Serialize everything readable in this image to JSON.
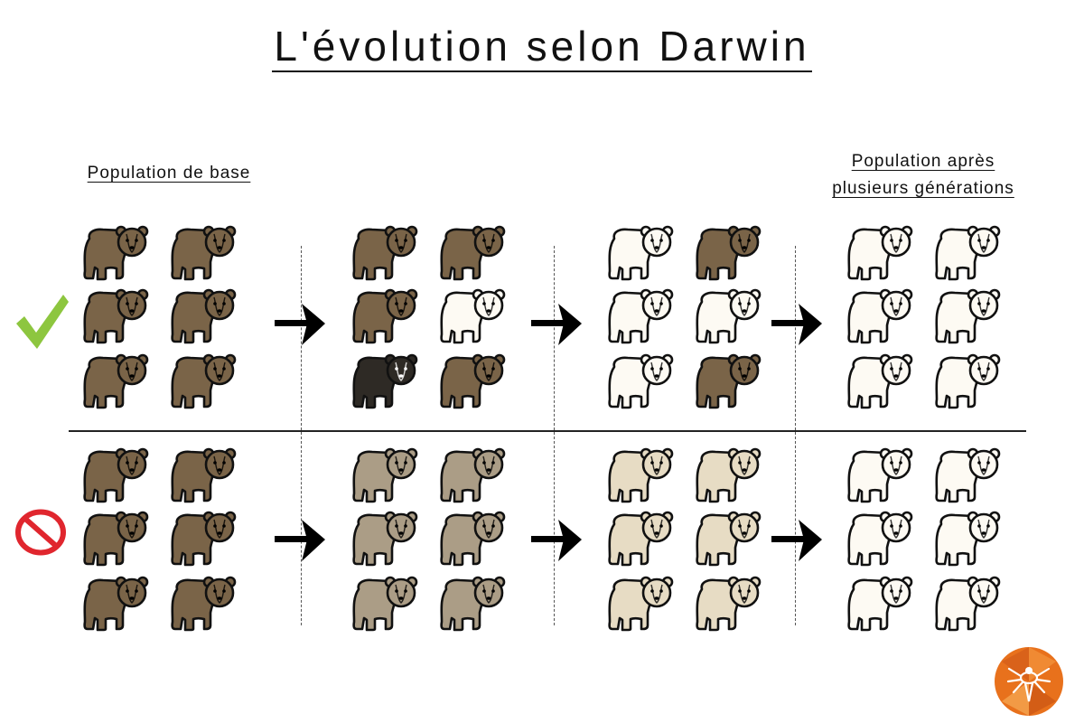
{
  "title": "L'évolution selon Darwin",
  "labels": {
    "base": "Population de base",
    "after_line1": "Population après",
    "after_line2": "plusieurs générations"
  },
  "colors": {
    "brown": "#7a6448",
    "dark": "#2e2a25",
    "white": "#fdfaf3",
    "gray_brown": "#ab9d86",
    "beige": "#e7dcc4",
    "check_green": "#8dc63f",
    "stop_red": "#e0262e",
    "logo_orange": "#e8711c"
  },
  "rows": [
    {
      "name": "selection-row",
      "marker": "check-icon",
      "generations": [
        [
          "brown",
          "brown",
          "brown",
          "brown",
          "brown",
          "brown"
        ],
        [
          "brown",
          "brown",
          "brown",
          "white",
          "dark",
          "brown"
        ],
        [
          "white",
          "brown",
          "white",
          "white",
          "white",
          "brown"
        ],
        [
          "white",
          "white",
          "white",
          "white",
          "white",
          "white"
        ]
      ]
    },
    {
      "name": "no-selection-row",
      "marker": "prohibited-icon",
      "generations": [
        [
          "brown",
          "brown",
          "brown",
          "brown",
          "brown",
          "brown"
        ],
        [
          "gray_brown",
          "gray_brown",
          "gray_brown",
          "gray_brown",
          "gray_brown",
          "gray_brown"
        ],
        [
          "beige",
          "beige",
          "beige",
          "beige",
          "beige",
          "beige"
        ],
        [
          "white",
          "white",
          "white",
          "white",
          "white",
          "white"
        ]
      ]
    }
  ],
  "icons": [
    "bear-icon",
    "arrow-right-icon",
    "check-icon",
    "prohibited-icon",
    "logo-icon"
  ]
}
